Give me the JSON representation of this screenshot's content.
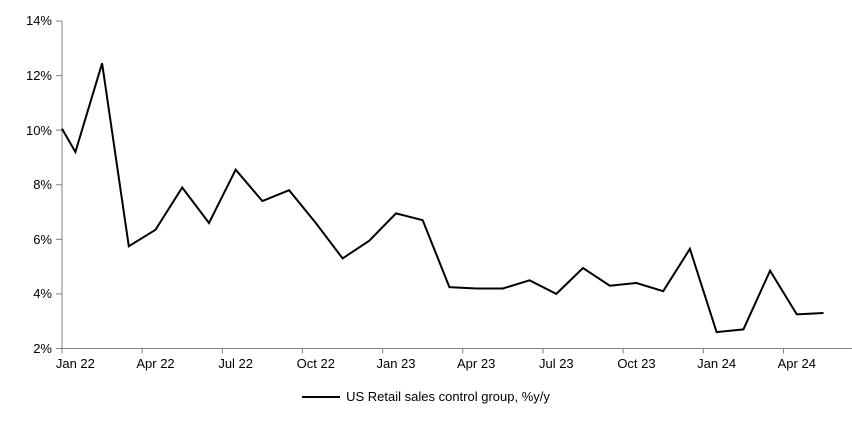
{
  "page": {
    "background": "#ffffff"
  },
  "chart_data": {
    "type": "line",
    "title": "",
    "legend": [
      "US Retail sales control group, %y/y"
    ],
    "legend_position": "bottom-center",
    "series_color": "#000000",
    "axis_color": "#808080",
    "grid": false,
    "ylim": [
      2,
      14
    ],
    "y_ticks": [
      2,
      4,
      6,
      8,
      10,
      12,
      14
    ],
    "y_tick_suffix": "%",
    "x": [
      "Jan 22",
      "Feb 22",
      "Mar 22",
      "Apr 22",
      "May 22",
      "Jun 22",
      "Jul 22",
      "Aug 22",
      "Sep 22",
      "Oct 22",
      "Nov 22",
      "Dec 22",
      "Jan 23",
      "Feb 23",
      "Mar 23",
      "Apr 23",
      "May 23",
      "Jun 23",
      "Jul 23",
      "Aug 23",
      "Sep 23",
      "Oct 23",
      "Nov 23",
      "Dec 23",
      "Jan 24",
      "Feb 24",
      "Mar 24",
      "Apr 24",
      "May 24"
    ],
    "values": [
      9.2,
      12.45,
      5.75,
      6.35,
      7.9,
      6.6,
      8.55,
      7.4,
      7.8,
      6.6,
      5.3,
      5.95,
      6.95,
      6.7,
      4.25,
      4.2,
      4.2,
      4.5,
      4.0,
      4.95,
      4.3,
      4.4,
      4.1,
      5.65,
      2.6,
      2.7,
      4.85,
      3.25,
      3.3
    ],
    "lead_in_value": 10.05,
    "x_tick_labels": [
      "Jan 22",
      "Apr 22",
      "Jul 22",
      "Oct 22",
      "Jan 23",
      "Apr 23",
      "Jul 23",
      "Oct 23",
      "Jan 24",
      "Apr 24"
    ],
    "x_tick_step_months": 3
  }
}
